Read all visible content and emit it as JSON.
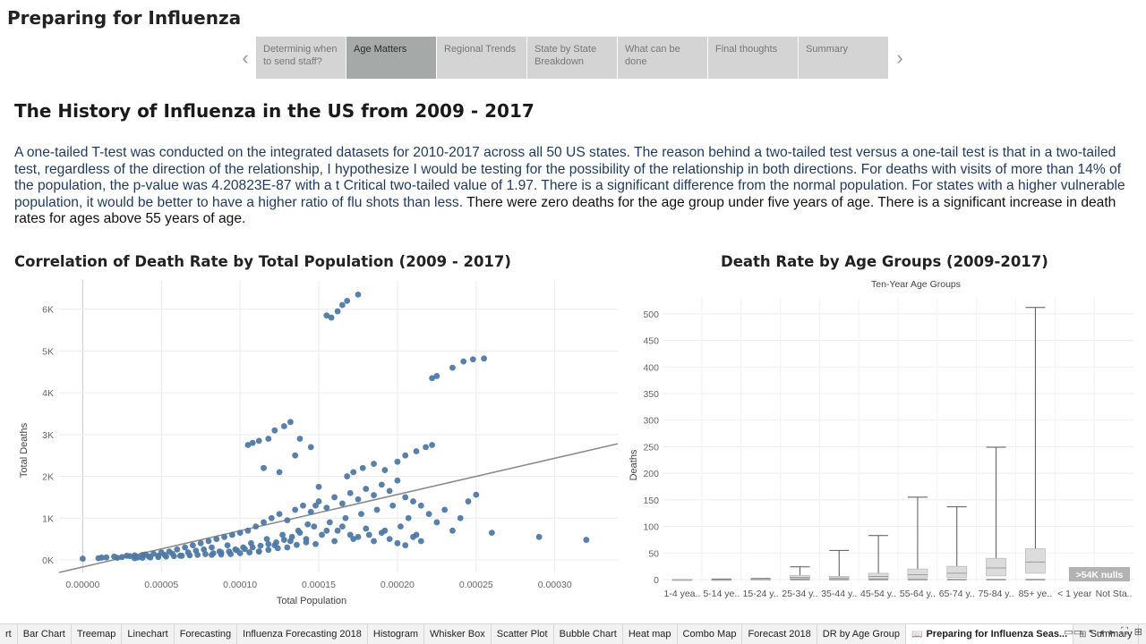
{
  "dashboard": {
    "title": "Preparing for Influenza"
  },
  "story_nav": {
    "prev_icon": "‹",
    "next_icon": "›",
    "tabs": [
      {
        "label": "Determinig when to send staff?",
        "active": false
      },
      {
        "label": "Age Matters",
        "active": true
      },
      {
        "label": "Regional Trends",
        "active": false
      },
      {
        "label": "State by State Breakdown",
        "active": false
      },
      {
        "label": "What can be done",
        "active": false
      },
      {
        "label": "Final thoughts",
        "active": false
      },
      {
        "label": "Summary",
        "active": false
      }
    ]
  },
  "section": {
    "title": "The History of Influenza in the US from 2009 - 2017",
    "paragraph_blue": "A one-tailed T-test was conducted on the integrated datasets for 2010-2017 across all 50 US states.  The reason behind a two-tailed test versus a one-tail test is that in a two-tailed test, regardless of the direction of the relationship, I hypothesize I would be testing for the possibility of the relationship in both directions. For deaths with visits of more than 14% of the population, the p-value was 4.20823E-87 with a t Critical two-tailed value of 1.97.  There is a significant difference from the normal population. For states with a higher vulnerable population, it would be better to have a higher ratio of flu shots than less.",
    "paragraph_dark": " There were zero deaths for the age group under five years of age.  There is a significant increase in death rates for ages above 55 years of age."
  },
  "colors": {
    "point": "#4e79a7",
    "trend": "#8c8c8c",
    "active_tab": "#a5aaa8",
    "tab": "#d4d4d4",
    "null_badge": "#b3b3b3"
  },
  "chart_data": [
    {
      "type": "scatter",
      "title": "Correlation of Death Rate by Total Population (2009 - 2017)",
      "xlabel": "Total Population",
      "ylabel": "Total Deaths",
      "xlim": [
        -1.5e-05,
        0.00034
      ],
      "ylim": [
        -300,
        6700
      ],
      "x_ticks": [
        0.0,
        5e-05,
        0.0001,
        0.00015,
        0.0002,
        0.00025,
        0.0003
      ],
      "x_tick_labels": [
        "0.00000",
        "0.00005",
        "0.00010",
        "0.00015",
        "0.00020",
        "0.00025",
        "0.00030"
      ],
      "y_ticks": [
        0,
        1000,
        2000,
        3000,
        4000,
        5000,
        6000
      ],
      "y_tick_labels": [
        "0K",
        "1K",
        "2K",
        "3K",
        "4K",
        "5K",
        "6K"
      ],
      "grid": true,
      "trend_line": {
        "x": [
          -1.5e-05,
          0.00034
        ],
        "y": [
          -300,
          2780
        ]
      },
      "points": [
        [
          0.0,
          30
        ],
        [
          1e-05,
          40
        ],
        [
          1.2e-05,
          55
        ],
        [
          1.5e-05,
          60
        ],
        [
          2e-05,
          80
        ],
        [
          2.2e-05,
          50
        ],
        [
          2.5e-05,
          70
        ],
        [
          2.8e-05,
          100
        ],
        [
          3e-05,
          90
        ],
        [
          3.3e-05,
          110
        ],
        [
          3.5e-05,
          60
        ],
        [
          3.8e-05,
          120
        ],
        [
          4e-05,
          130
        ],
        [
          4.2e-05,
          80
        ],
        [
          4.5e-05,
          150
        ],
        [
          4.8e-05,
          100
        ],
        [
          5e-05,
          180
        ],
        [
          5.2e-05,
          120
        ],
        [
          5.5e-05,
          200
        ],
        [
          5.7e-05,
          150
        ],
        [
          6e-05,
          250
        ],
        [
          6.2e-05,
          100
        ],
        [
          6.5e-05,
          300
        ],
        [
          6.7e-05,
          180
        ],
        [
          7e-05,
          350
        ],
        [
          7.2e-05,
          220
        ],
        [
          7.5e-05,
          400
        ],
        [
          7.7e-05,
          250
        ],
        [
          8e-05,
          450
        ],
        [
          8.2e-05,
          300
        ],
        [
          8.5e-05,
          500
        ],
        [
          8.7e-05,
          200
        ],
        [
          9e-05,
          550
        ],
        [
          9.2e-05,
          350
        ],
        [
          9.5e-05,
          600
        ],
        [
          9.7e-05,
          250
        ],
        [
          0.0001,
          650
        ],
        [
          0.000102,
          300
        ],
        [
          0.000105,
          700
        ],
        [
          0.000107,
          400
        ],
        [
          0.00011,
          800
        ],
        [
          0.000112,
          200
        ],
        [
          0.000115,
          900
        ],
        [
          0.000117,
          500
        ],
        [
          0.00012,
          1000
        ],
        [
          0.000122,
          350
        ],
        [
          0.000125,
          1100
        ],
        [
          0.000127,
          600
        ],
        [
          0.00013,
          950
        ],
        [
          0.000132,
          450
        ],
        [
          0.000135,
          1200
        ],
        [
          0.000137,
          700
        ],
        [
          0.00014,
          1300
        ],
        [
          0.000142,
          500
        ],
        [
          0.000145,
          1150
        ],
        [
          0.000147,
          800
        ],
        [
          0.00015,
          1400
        ],
        [
          0.000152,
          600
        ],
        [
          0.000155,
          1250
        ],
        [
          0.000157,
          900
        ],
        [
          0.00016,
          1500
        ],
        [
          0.000162,
          700
        ],
        [
          0.000165,
          1350
        ],
        [
          0.000167,
          1000
        ],
        [
          0.00017,
          1600
        ],
        [
          0.000172,
          500
        ],
        [
          0.000175,
          1450
        ],
        [
          0.000177,
          1100
        ],
        [
          0.00018,
          1700
        ],
        [
          0.000182,
          600
        ],
        [
          0.000185,
          1550
        ],
        [
          0.000187,
          1200
        ],
        [
          0.00019,
          1800
        ],
        [
          0.000192,
          700
        ],
        [
          0.000195,
          1650
        ],
        [
          0.000197,
          1300
        ],
        [
          0.0002,
          1900
        ],
        [
          0.000202,
          800
        ],
        [
          0.000205,
          1500
        ],
        [
          0.000207,
          1000
        ],
        [
          0.00021,
          1400
        ],
        [
          0.000212,
          600
        ],
        [
          0.000215,
          1300
        ],
        [
          0.00022,
          1100
        ],
        [
          0.000225,
          900
        ],
        [
          0.00023,
          1200
        ],
        [
          0.000235,
          700
        ],
        [
          0.00024,
          1000
        ],
        [
          0.000245,
          1400
        ],
        [
          0.00025,
          1560
        ],
        [
          0.000105,
          2750
        ],
        [
          0.000108,
          2800
        ],
        [
          0.000112,
          2850
        ],
        [
          0.000118,
          2900
        ],
        [
          0.000122,
          3100
        ],
        [
          0.000128,
          3200
        ],
        [
          0.000132,
          3300
        ],
        [
          0.000138,
          2900
        ],
        [
          0.000115,
          2200
        ],
        [
          0.000125,
          2100
        ],
        [
          0.000135,
          2500
        ],
        [
          0.000145,
          2700
        ],
        [
          0.000155,
          5850
        ],
        [
          0.000158,
          5800
        ],
        [
          0.000162,
          5950
        ],
        [
          0.000165,
          6100
        ],
        [
          0.000168,
          6200
        ],
        [
          0.000175,
          6350
        ],
        [
          0.000222,
          4350
        ],
        [
          0.000225,
          4400
        ],
        [
          0.000235,
          4600
        ],
        [
          0.000242,
          4750
        ],
        [
          0.000248,
          4800
        ],
        [
          0.000255,
          4820
        ],
        [
          0.000168,
          2000
        ],
        [
          0.000172,
          2100
        ],
        [
          0.000178,
          2200
        ],
        [
          0.000185,
          2300
        ],
        [
          0.000192,
          2150
        ],
        [
          0.0002,
          2350
        ],
        [
          0.000205,
          2500
        ],
        [
          0.000212,
          2600
        ],
        [
          0.000218,
          2700
        ],
        [
          0.000222,
          2750
        ],
        [
          0.00015,
          1750
        ],
        [
          0.000148,
          1300
        ],
        [
          0.000143,
          850
        ],
        [
          0.000138,
          650
        ],
        [
          0.000133,
          550
        ],
        [
          0.000128,
          480
        ],
        [
          0.000123,
          420
        ],
        [
          0.000118,
          380
        ],
        [
          0.000113,
          340
        ],
        [
          0.000108,
          300
        ],
        [
          0.000103,
          260
        ],
        [
          9.8e-05,
          230
        ],
        [
          9.3e-05,
          200
        ],
        [
          8.8e-05,
          180
        ],
        [
          8.3e-05,
          160
        ],
        [
          7.8e-05,
          140
        ],
        [
          7.3e-05,
          120
        ],
        [
          6.8e-05,
          110
        ],
        [
          6.3e-05,
          100
        ],
        [
          5.8e-05,
          90
        ],
        [
          5.3e-05,
          80
        ],
        [
          4.8e-05,
          70
        ],
        [
          4.3e-05,
          60
        ],
        [
          3.8e-05,
          50
        ],
        [
          3.3e-05,
          40
        ],
        [
          0.00026,
          650
        ],
        [
          0.00029,
          550
        ],
        [
          0.00032,
          480
        ],
        [
          0.000155,
          700
        ],
        [
          0.00016,
          450
        ],
        [
          0.000165,
          800
        ],
        [
          0.00017,
          600
        ],
        [
          0.000175,
          550
        ],
        [
          0.00018,
          750
        ],
        [
          0.000185,
          450
        ],
        [
          0.00019,
          650
        ],
        [
          0.000195,
          500
        ],
        [
          0.0002,
          400
        ],
        [
          0.000205,
          350
        ],
        [
          0.00021,
          550
        ],
        [
          0.000215,
          450
        ],
        [
          0.000148,
          380
        ],
        [
          0.000142,
          420
        ],
        [
          0.000136,
          360
        ],
        [
          0.00013,
          300
        ],
        [
          0.000124,
          280
        ],
        [
          0.000118,
          240
        ],
        [
          0.000112,
          200
        ],
        [
          0.000106,
          180
        ],
        [
          0.0001,
          160
        ],
        [
          9.4e-05,
          140
        ],
        [
          8.8e-05,
          130
        ],
        [
          8.2e-05,
          120
        ]
      ]
    },
    {
      "type": "box",
      "title": "Death Rate by Age Groups (2009-2017)",
      "subtitle": "Ten-Year Age Groups",
      "ylabel": "Deaths",
      "ylim": [
        -5,
        530
      ],
      "y_ticks": [
        0,
        50,
        100,
        150,
        200,
        250,
        300,
        350,
        400,
        450,
        500
      ],
      "categories": [
        "1-4 yea..",
        "5-14 ye..",
        "15-24 y..",
        "25-34 y..",
        "35-44 y..",
        "45-54 y..",
        "55-64 y..",
        "65-74 y..",
        "75-84 y..",
        "85+ ye..",
        "< 1 year",
        "Not Sta.."
      ],
      "boxes": [
        {
          "min": 0,
          "q1": 0,
          "median": 0,
          "q3": 0,
          "max": 0
        },
        {
          "min": 0,
          "q1": 0,
          "median": 0,
          "q3": 0,
          "max": 1
        },
        {
          "min": 0,
          "q1": 0,
          "median": 0,
          "q3": 1,
          "max": 2
        },
        {
          "min": 0,
          "q1": 2,
          "median": 4,
          "q3": 8,
          "max": 24
        },
        {
          "min": 0,
          "q1": 1,
          "median": 3,
          "q3": 6,
          "max": 55
        },
        {
          "min": 0,
          "q1": 2,
          "median": 6,
          "q3": 12,
          "max": 83
        },
        {
          "min": 0,
          "q1": 3,
          "median": 9,
          "q3": 20,
          "max": 155
        },
        {
          "min": 0,
          "q1": 4,
          "median": 12,
          "q3": 25,
          "max": 137
        },
        {
          "min": 0,
          "q1": 7,
          "median": 22,
          "q3": 40,
          "max": 249
        },
        {
          "min": 0,
          "q1": 12,
          "median": 33,
          "q3": 58,
          "max": 512
        },
        null,
        null
      ],
      "null_badge": ">54K nulls"
    }
  ],
  "sheet_tabs": [
    {
      "label": "rt",
      "icon": "",
      "active": false
    },
    {
      "label": "Bar Chart",
      "icon": "",
      "active": false
    },
    {
      "label": "Treemap",
      "icon": "",
      "active": false
    },
    {
      "label": "Linechart",
      "icon": "",
      "active": false
    },
    {
      "label": "Forecasting",
      "icon": "",
      "active": false
    },
    {
      "label": "Influenza Forecasting 2018",
      "icon": "",
      "active": false
    },
    {
      "label": "Histogram",
      "icon": "",
      "active": false
    },
    {
      "label": "Whisker Box",
      "icon": "",
      "active": false
    },
    {
      "label": "Scatter Plot",
      "icon": "",
      "active": false
    },
    {
      "label": "Bubble Chart",
      "icon": "",
      "active": false
    },
    {
      "label": "Heat map",
      "icon": "",
      "active": false
    },
    {
      "label": "Combo Map",
      "icon": "",
      "active": false
    },
    {
      "label": "Forecast 2018",
      "icon": "",
      "active": false
    },
    {
      "label": "DR by Age Group",
      "icon": "",
      "active": false
    },
    {
      "label": "Preparing for Influenza Seas...",
      "icon": "📖",
      "active": true
    },
    {
      "label": "Summary",
      "icon": "⊞",
      "active": false
    }
  ],
  "status_icons": [
    "▭▭",
    "▪",
    "◂",
    "▸",
    "⛶",
    "⊞"
  ]
}
